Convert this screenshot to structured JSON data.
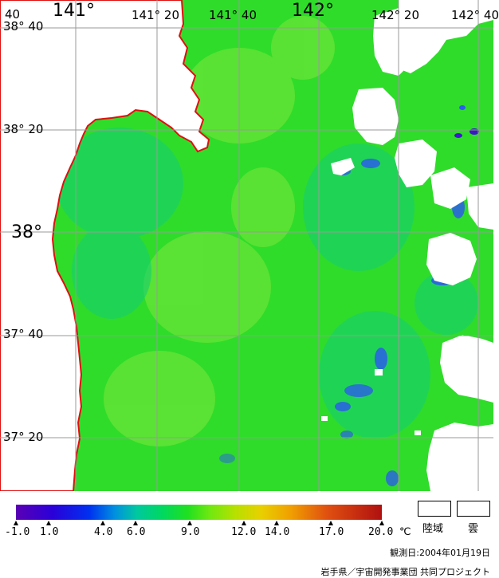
{
  "map": {
    "lon_labels": [
      "141°",
      "141° 20",
      "141° 40",
      "142°",
      "142° 20",
      "142° 40"
    ],
    "lon_corner_label": "40",
    "lat_labels": [
      "38° 40",
      "38° 20",
      "38°",
      "37° 40",
      "37° 20"
    ],
    "colors": {
      "sea_base": "#2fdc2a",
      "sea_warm": "#5fe33a",
      "sea_cool": "#16d07a",
      "cold_blue": "#2a5ee8",
      "coast": "#e01010",
      "land_cloud": "#ffffff",
      "grid": "#9a9a9a"
    }
  },
  "legend": {
    "tick_labels": [
      "-1.0",
      "1.0",
      "4.0",
      "6.0",
      "9.0",
      "12.0",
      "14.0",
      "17.0",
      "20.0"
    ],
    "unit": "℃",
    "land_label": "陸域",
    "cloud_label": "雲",
    "date_label": "観測日:2004年01月19日",
    "credit": "岩手県／宇宙開発事業団  共同プロジェクト"
  }
}
